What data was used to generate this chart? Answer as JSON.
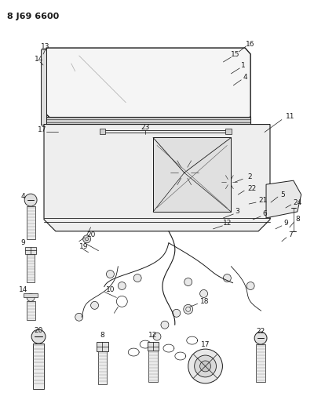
{
  "title": "8 J69 6600",
  "bg": "#ffffff",
  "lc": "#1a1a1a",
  "fig_w": 4.0,
  "fig_h": 5.33,
  "dpi": 100
}
